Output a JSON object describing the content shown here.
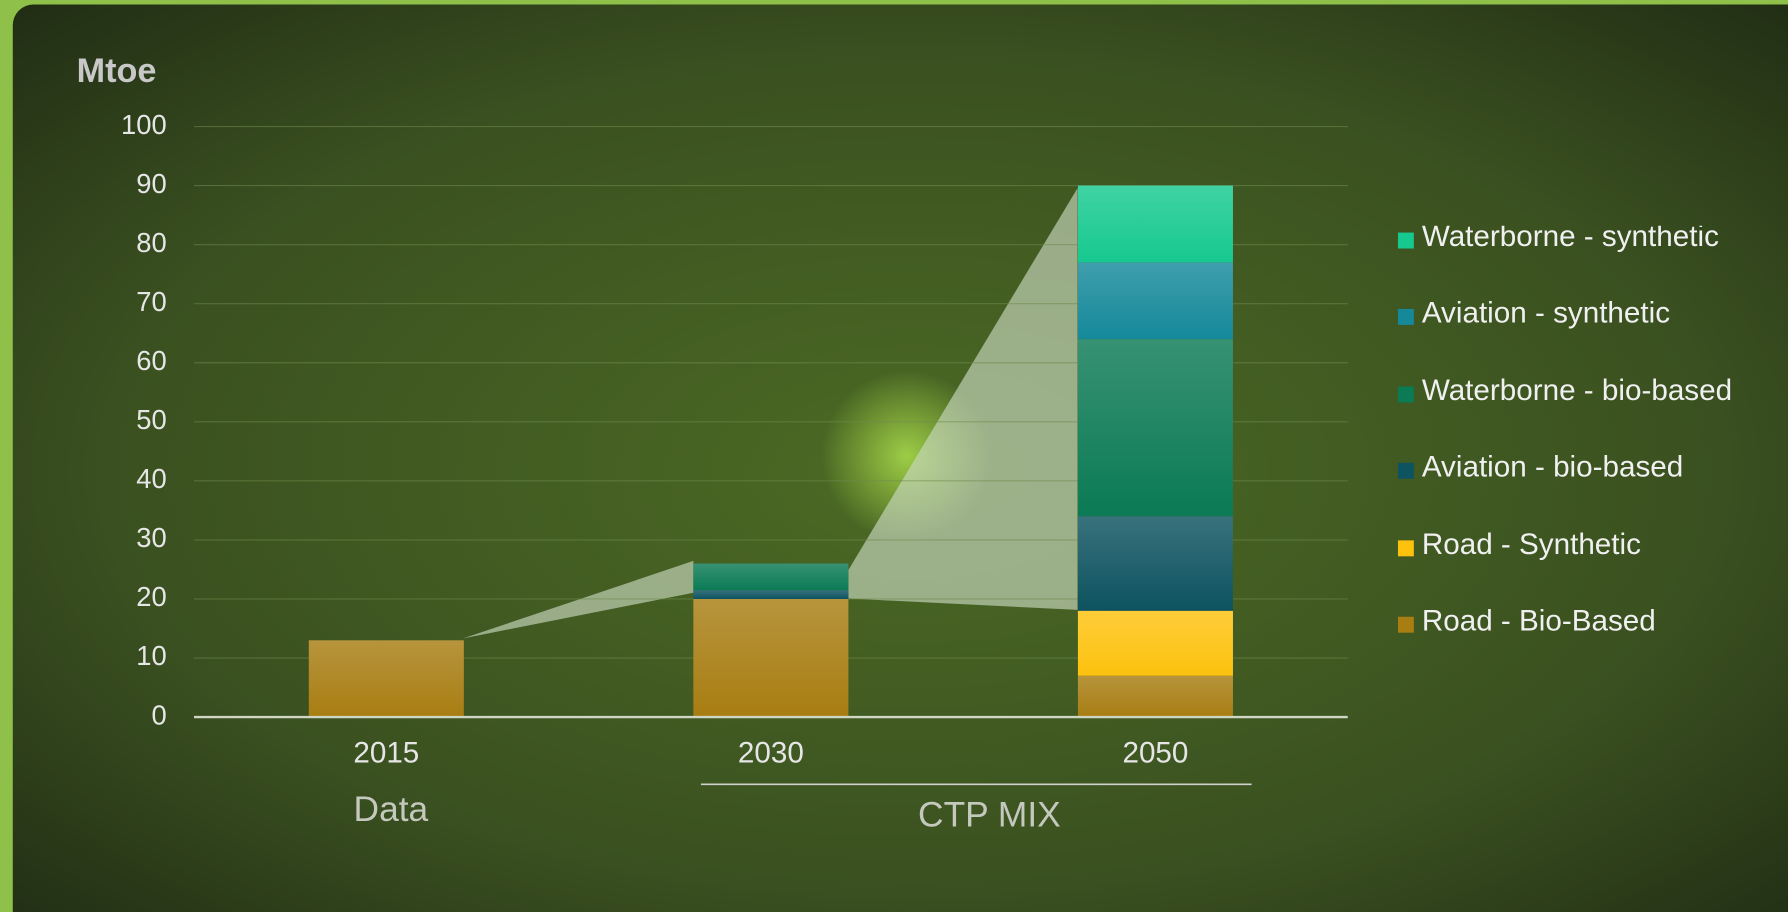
{
  "chart_data": {
    "type": "stacked_bar",
    "y_axis_label": "Mtoe",
    "categories": [
      "2015",
      "2030",
      "2050"
    ],
    "category_groups": [
      {
        "label": "Data",
        "span": [
          0,
          0
        ]
      },
      {
        "label": "CTP MIX",
        "span": [
          1,
          2
        ]
      }
    ],
    "series": [
      {
        "name": "Road - Bio-Based",
        "color": "#a87d12",
        "values": [
          13,
          20,
          7
        ]
      },
      {
        "name": "Road - Synthetic",
        "color": "#fdc20e",
        "values": [
          0,
          0,
          11
        ]
      },
      {
        "name": "Aviation - bio-based",
        "color": "#0d5360",
        "values": [
          0,
          1.5,
          16
        ]
      },
      {
        "name": "Waterborne - bio-based",
        "color": "#0b7a55",
        "values": [
          0,
          4.5,
          30
        ]
      },
      {
        "name": "Aviation - synthetic",
        "color": "#15899a",
        "values": [
          0,
          0,
          13
        ]
      },
      {
        "name": "Waterborne - synthetic",
        "color": "#16c98f",
        "values": [
          0,
          0,
          13
        ]
      }
    ],
    "ylim": [
      0,
      100
    ],
    "yticks": [
      0,
      10,
      20,
      30,
      40,
      50,
      60,
      70,
      80,
      90,
      100
    ],
    "grid": true,
    "legend": "right"
  }
}
